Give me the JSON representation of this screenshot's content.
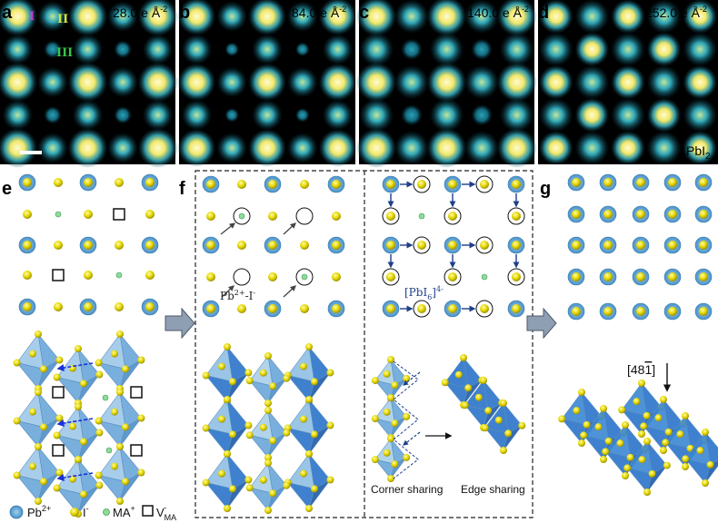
{
  "panels": {
    "a": {
      "label": "a",
      "dose": "28.0 e Å",
      "dose_sup": "-2"
    },
    "b": {
      "label": "b",
      "dose": "84.0 e Å",
      "dose_sup": "-2"
    },
    "c": {
      "label": "c",
      "dose": "140.0 e Å",
      "dose_sup": "-2"
    },
    "d": {
      "label": "d",
      "dose": "252.0 e Å",
      "dose_sup": "-2",
      "phase": "PbI",
      "phase_sub": "2"
    },
    "e": {
      "label": "e"
    },
    "f": {
      "label": "f"
    },
    "g": {
      "label": "g"
    }
  },
  "site_labels": {
    "one": "I",
    "two": "II",
    "three": "III"
  },
  "annotations": {
    "pb_i_pair_base": "Pb",
    "pb_i_pair_sup1": "2+",
    "pb_i_pair_mid": "-I",
    "pb_i_pair_sup2": "-",
    "pbi6_open": "[PbI",
    "pbi6_sub": "6",
    "pbi6_close": "]",
    "pbi6_sup": "4-",
    "direction": "[48",
    "direction_bar": "1",
    "direction_close": "]",
    "corner_sharing": "Corner sharing",
    "edge_sharing": "Edge sharing"
  },
  "legend": {
    "pb": "Pb",
    "pb_sup": "2+",
    "i": "I",
    "i_sup": "-",
    "ma": "MA",
    "ma_sup": "+",
    "v": "V",
    "v_sub": "MA",
    "v_sup": "-"
  },
  "colors": {
    "stem_bright": "#fff59a",
    "stem_mid": "#1fa3b8",
    "stem_bg": "#000000",
    "pb": "#6aaed6",
    "iodine": "#e5d800",
    "ma": "#8fd99a",
    "octa_light": "#8fbfe3",
    "octa_dark": "#2a73c9",
    "arrow_blue": "#1f3f8a",
    "gray_arrow": "#8f9fb3",
    "dose_text": "#e8a800"
  }
}
